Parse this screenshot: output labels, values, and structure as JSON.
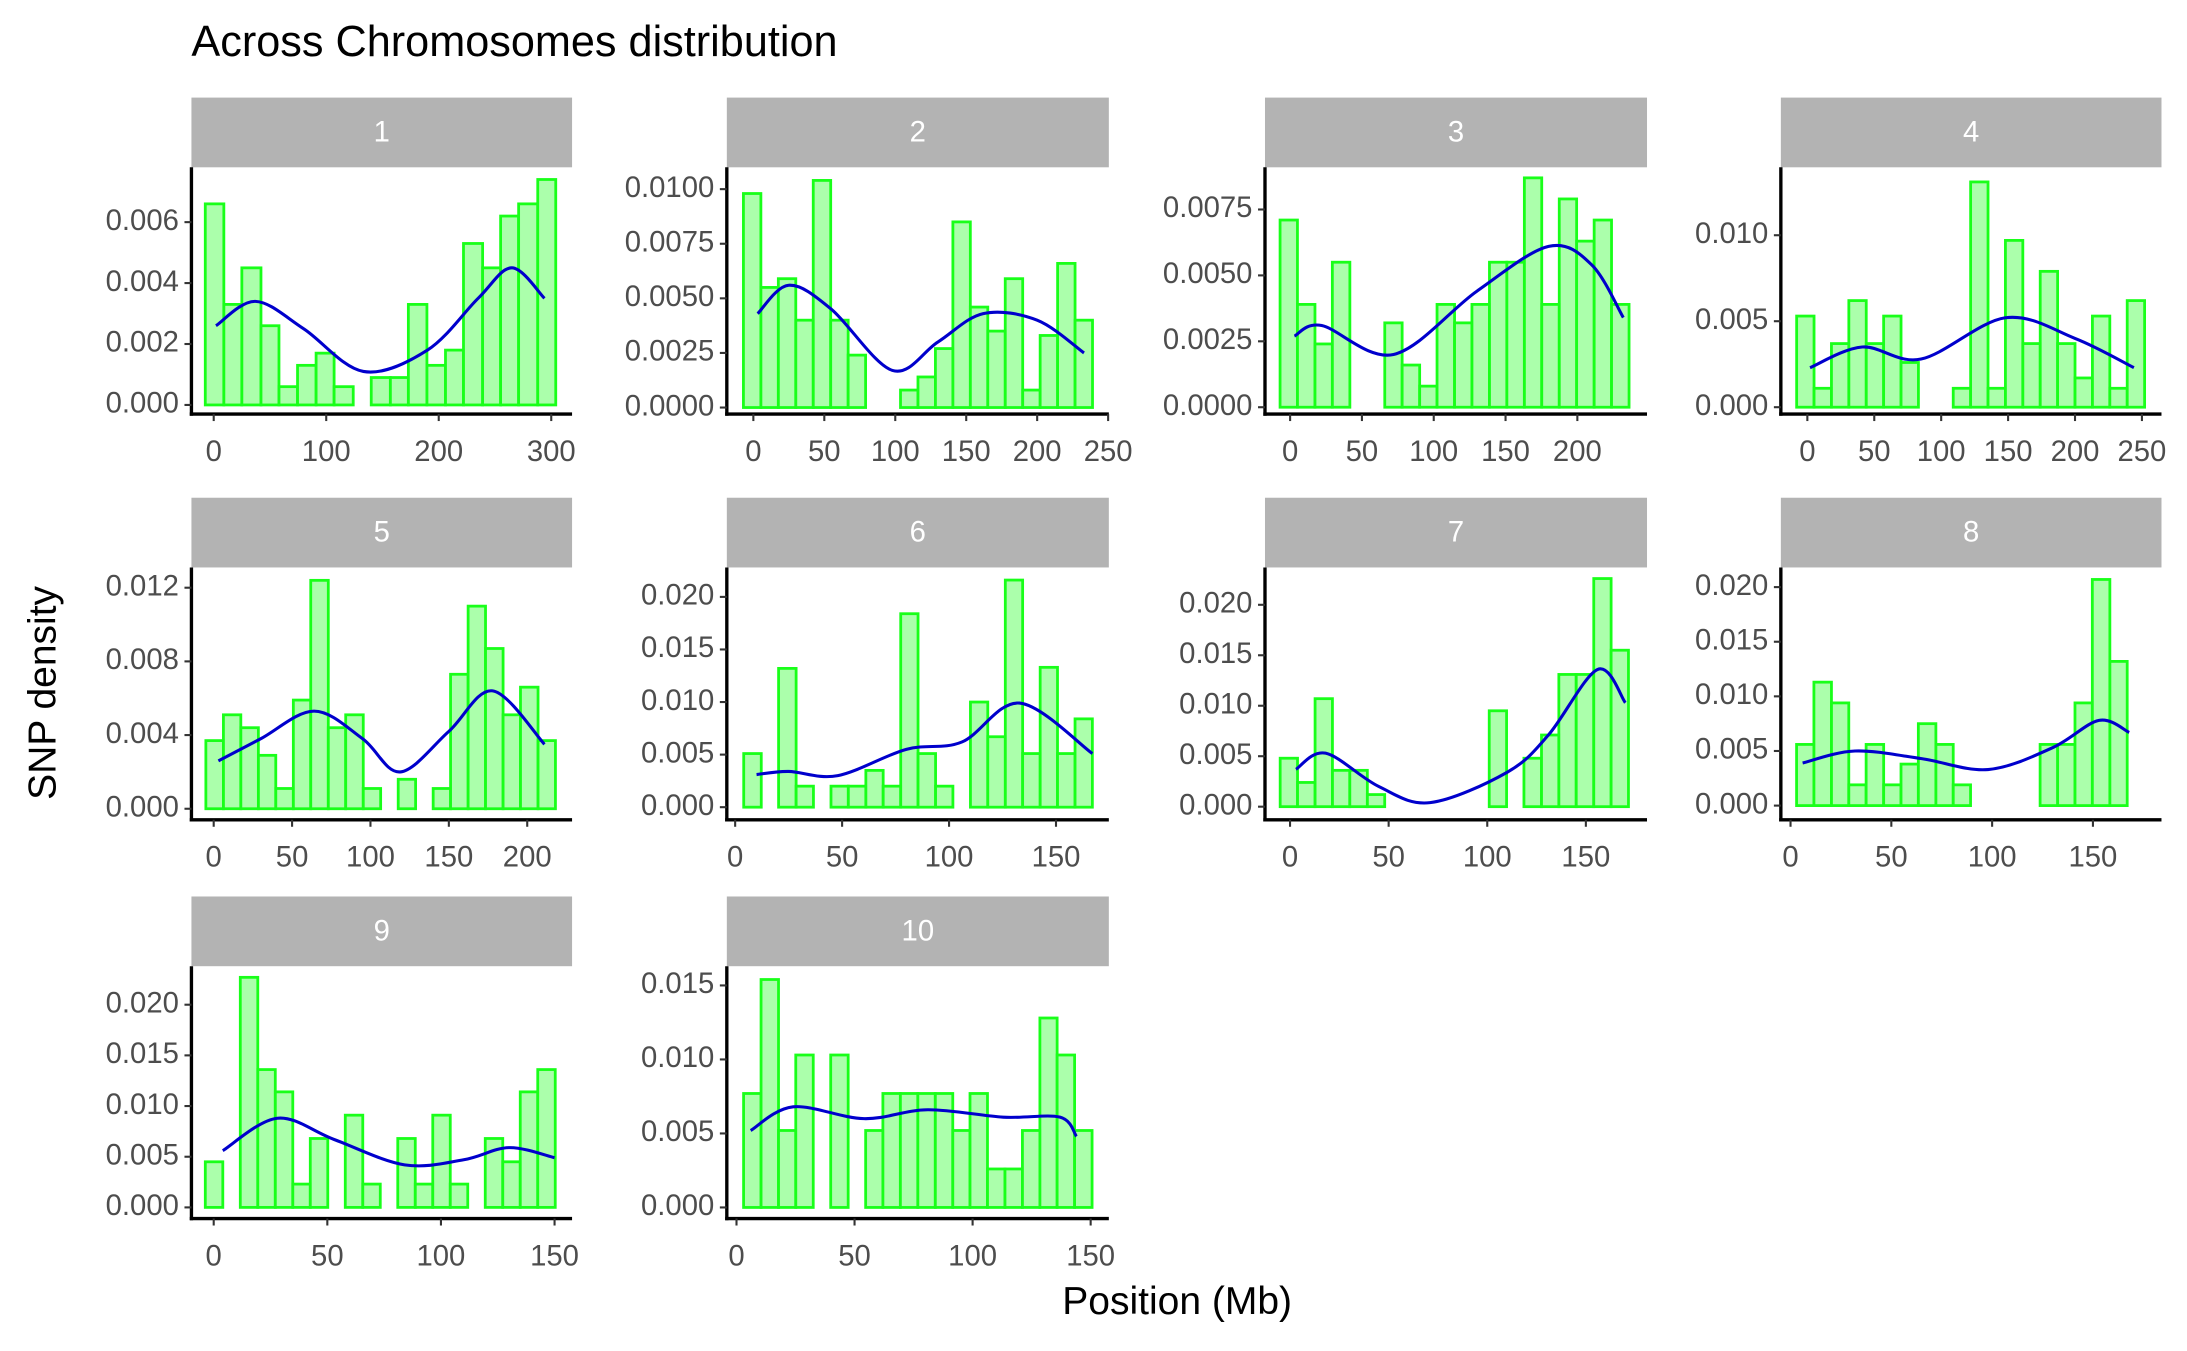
{
  "title": "Across Chromosomes distribution",
  "xlabel": "Position (Mb)",
  "ylabel": "SNP density",
  "chart_data": [
    {
      "type": "histogram",
      "title": "1",
      "color": "#19ff19",
      "fill": "#9cff9c",
      "bins": [
        -7.5,
        9,
        25,
        42,
        58,
        74.5,
        91,
        107,
        124,
        140,
        157,
        173,
        189.5,
        206,
        222,
        239,
        255,
        271,
        288,
        304
      ],
      "values": [
        0.0066,
        0.0033,
        0.0045,
        0.0026,
        0.0006,
        0.0013,
        0.0017,
        0.0006,
        0,
        0.0009,
        0.0009,
        0.0033,
        0.0013,
        0.0018,
        0.0053,
        0.0045,
        0.0062,
        0.0066,
        0.0074
      ],
      "density": {
        "color": "#0000cc",
        "x": [
          2,
          37,
          80,
          133,
          190,
          235,
          265,
          294
        ],
        "values": [
          0.0026,
          0.0034,
          0.0025,
          0.0011,
          0.0018,
          0.0035,
          0.0045,
          0.0035
        ]
      },
      "xlim": [
        -19.8,
        318.5
      ],
      "ylim": [
        -0.0003,
        0.0078
      ],
      "xticks": [
        0,
        100,
        200,
        300
      ],
      "yticks": [
        {
          "value": 0,
          "label": "0.000"
        },
        0.002,
        0.004,
        0.006
      ]
    },
    {
      "type": "histogram",
      "title": "2",
      "color": "#19ff19",
      "fill": "#9cff9c",
      "bins": [
        -7,
        5.3,
        17.6,
        29.9,
        42.2,
        54.5,
        66.8,
        79.1,
        91.4,
        103.7,
        116,
        128.3,
        140.6,
        152.9,
        165.2,
        177.5,
        189.8,
        202.1,
        214.4,
        226.7,
        239
      ],
      "values": [
        0.0098,
        0.0055,
        0.0059,
        0.004,
        0.0104,
        0.004,
        0.0024,
        0,
        0,
        0.0008,
        0.0014,
        0.0027,
        0.0085,
        0.0046,
        0.0035,
        0.0059,
        0.0008,
        0.0033,
        0.0066,
        0.004
      ],
      "density": {
        "color": "#0000cc",
        "x": [
          3,
          25,
          55,
          98,
          130,
          162,
          200,
          233
        ],
        "values": [
          0.0043,
          0.0056,
          0.0045,
          0.0017,
          0.003,
          0.0043,
          0.004,
          0.0025
        ]
      },
      "xlim": [
        -18.7,
        250.5
      ],
      "ylim": [
        -0.0003,
        0.011
      ],
      "xticks": [
        0,
        50,
        100,
        150,
        200,
        250
      ],
      "yticks": [
        {
          "value": 0,
          "label": "0.0000"
        },
        0.0025,
        {
          "value": 0.005,
          "label": "0.0050"
        },
        0.0075,
        {
          "value": 0.01,
          "label": "0.0100"
        }
      ]
    },
    {
      "type": "histogram",
      "title": "3",
      "color": "#19ff19",
      "fill": "#9cff9c",
      "bins": [
        -7,
        5.1,
        17.3,
        29.4,
        41.6,
        53.7,
        65.9,
        78,
        90.2,
        102.3,
        114.5,
        126.6,
        138.8,
        150.9,
        163.1,
        175.2,
        187.4,
        199.5,
        211.7,
        223.8,
        236
      ],
      "values": [
        0.0071,
        0.0039,
        0.0024,
        0.0055,
        0,
        0,
        0.0032,
        0.0016,
        0.0008,
        0.0039,
        0.0032,
        0.0039,
        0.0055,
        0.0055,
        0.0087,
        0.0039,
        0.0079,
        0.0063,
        0.0071,
        0.0039
      ],
      "density": {
        "color": "#0000cc",
        "x": [
          3,
          22,
          72,
          130,
          180,
          210,
          232
        ],
        "values": [
          0.0027,
          0.0031,
          0.002,
          0.0044,
          0.0061,
          0.0054,
          0.0034
        ]
      },
      "xlim": [
        -17.5,
        248.5
      ],
      "ylim": [
        -0.00026,
        0.0091
      ],
      "xticks": [
        0,
        50,
        100,
        150,
        200
      ],
      "yticks": [
        {
          "value": 0,
          "label": "0.0000"
        },
        0.0025,
        {
          "value": 0.005,
          "label": "0.0050"
        },
        0.0075
      ]
    },
    {
      "type": "histogram",
      "title": "4",
      "color": "#19ff19",
      "fill": "#9cff9c",
      "bins": [
        -8,
        5,
        18,
        31,
        44,
        57,
        70,
        83,
        96,
        109,
        122,
        135,
        148,
        161,
        174,
        187,
        200,
        213,
        226,
        239,
        252
      ],
      "values": [
        0.0053,
        0.0011,
        0.0037,
        0.0062,
        0.0037,
        0.0053,
        0.0026,
        0,
        0,
        0.0011,
        0.0131,
        0.0011,
        0.0097,
        0.0037,
        0.0079,
        0.0037,
        0.0017,
        0.0053,
        0.0011,
        0.0062
      ],
      "density": {
        "color": "#0000cc",
        "x": [
          2,
          41,
          85,
          148,
          200,
          244
        ],
        "values": [
          0.0023,
          0.0035,
          0.0028,
          0.0052,
          0.004,
          0.0023
        ]
      },
      "xlim": [
        -19.8,
        264.6
      ],
      "ylim": [
        -0.0004,
        0.01395
      ],
      "xticks": [
        0,
        50,
        100,
        150,
        200,
        250
      ],
      "yticks": [
        {
          "value": 0,
          "label": "0.000"
        },
        0.005,
        {
          "value": 0.01,
          "label": "0.010"
        }
      ]
    },
    {
      "type": "histogram",
      "title": "5",
      "color": "#19ff19",
      "fill": "#9cff9c",
      "bins": [
        -5,
        6.2,
        17.3,
        28.5,
        39.6,
        50.8,
        61.9,
        73.1,
        84.2,
        95.4,
        106.5,
        117.7,
        128.8,
        140,
        151.1,
        162.3,
        173.4,
        184.6,
        195.7,
        206.9,
        218
      ],
      "values": [
        0.0037,
        0.0051,
        0.0044,
        0.0029,
        0.0011,
        0.0059,
        0.0124,
        0.0044,
        0.0051,
        0.0011,
        0,
        0.0016,
        0,
        0.0011,
        0.0073,
        0.011,
        0.0087,
        0.0051,
        0.0066,
        0.0037
      ],
      "density": {
        "color": "#0000cc",
        "x": [
          3,
          30,
          64,
          95,
          119,
          150,
          178,
          211
        ],
        "values": [
          0.0026,
          0.0038,
          0.0053,
          0.0038,
          0.002,
          0.0042,
          0.0064,
          0.0035
        ]
      },
      "xlim": [
        -14.2,
        228.6
      ],
      "ylim": [
        -0.0006,
        0.0131
      ],
      "xticks": [
        0,
        50,
        100,
        150,
        200
      ],
      "yticks": [
        {
          "value": 0,
          "label": "0.000"
        },
        0.004,
        0.008,
        0.012
      ]
    },
    {
      "type": "histogram",
      "title": "6",
      "color": "#19ff19",
      "fill": "#9cff9c",
      "bins": [
        4,
        12.2,
        20.3,
        28.5,
        36.6,
        44.8,
        52.9,
        61.1,
        69.2,
        77.4,
        85.5,
        93.7,
        101.8,
        110,
        118.1,
        126.3,
        134.4,
        142.6,
        150.7,
        158.9,
        167
      ],
      "values": [
        0.0051,
        0,
        0.0132,
        0.002,
        0,
        0.002,
        0.002,
        0.0035,
        0.002,
        0.0184,
        0.0051,
        0.002,
        0,
        0.01,
        0.0067,
        0.0216,
        0.0051,
        0.0133,
        0.0051,
        0.0084
      ],
      "density": {
        "color": "#0000cc",
        "x": [
          10,
          25,
          48,
          80,
          106,
          133,
          167
        ],
        "values": [
          0.0031,
          0.0034,
          0.003,
          0.0055,
          0.0062,
          0.0099,
          0.0051
        ]
      },
      "xlim": [
        -3.9,
        174.7
      ],
      "ylim": [
        -0.0012,
        0.0228
      ],
      "xticks": [
        0,
        50,
        100,
        150
      ],
      "yticks": [
        {
          "value": 0,
          "label": "0.000"
        },
        0.005,
        {
          "value": 0.01,
          "label": "0.010"
        },
        0.015,
        {
          "value": 0.02,
          "label": "0.020"
        }
      ]
    },
    {
      "type": "histogram",
      "title": "7",
      "color": "#19ff19",
      "fill": "#9cff9c",
      "bins": [
        -5,
        3.8,
        12.7,
        21.5,
        30.3,
        39.2,
        48,
        56.8,
        65.6,
        74.5,
        83.3,
        92.1,
        101,
        109.8,
        118.6,
        127.5,
        136.3,
        145.1,
        154,
        162.8,
        171.6
      ],
      "values": [
        0.0048,
        0.0024,
        0.0107,
        0.0036,
        0.0036,
        0.0012,
        0,
        0,
        0,
        0,
        0,
        0,
        0.0095,
        0,
        0.0048,
        0.0071,
        0.0131,
        0.0131,
        0.0226,
        0.0155
      ],
      "density": {
        "color": "#0000cc",
        "x": [
          3,
          18,
          45,
          71,
          110,
          131,
          156,
          170
        ],
        "values": [
          0.0037,
          0.0053,
          0.002,
          0.0004,
          0.0034,
          0.0071,
          0.0136,
          0.0103
        ]
      },
      "xlim": [
        -12.7,
        181
      ],
      "ylim": [
        -0.0013,
        0.0237
      ],
      "xticks": [
        0,
        50,
        100,
        150
      ],
      "yticks": [
        {
          "value": 0,
          "label": "0.000"
        },
        0.005,
        {
          "value": 0.01,
          "label": "0.010"
        },
        0.015,
        {
          "value": 0.02,
          "label": "0.020"
        }
      ]
    },
    {
      "type": "histogram",
      "title": "8",
      "color": "#19ff19",
      "fill": "#9cff9c",
      "bins": [
        3,
        11.6,
        20.3,
        28.9,
        37.5,
        46.2,
        54.8,
        63.4,
        72.1,
        80.7,
        89.3,
        97.9,
        106.6,
        115.2,
        123.8,
        132.5,
        141.1,
        149.7,
        158.4,
        167
      ],
      "values": [
        0.0056,
        0.0113,
        0.0094,
        0.0019,
        0.0056,
        0.0019,
        0.0038,
        0.0075,
        0.0056,
        0.0019,
        0,
        0,
        0,
        0,
        0.0056,
        0.0056,
        0.0094,
        0.0207,
        0.0132
      ],
      "density": {
        "color": "#0000cc",
        "x": [
          6,
          32,
          65,
          98,
          130,
          153,
          168
        ],
        "values": [
          0.0039,
          0.005,
          0.0043,
          0.0033,
          0.0053,
          0.0078,
          0.0067
        ]
      },
      "xlim": [
        -4.8,
        184
      ],
      "ylim": [
        -0.0013,
        0.0218
      ],
      "xticks": [
        0,
        50,
        100,
        150
      ],
      "yticks": [
        {
          "value": 0,
          "label": "0.000"
        },
        0.005,
        {
          "value": 0.01,
          "label": "0.010"
        },
        0.015,
        {
          "value": 0.02,
          "label": "0.020"
        }
      ]
    },
    {
      "type": "histogram",
      "title": "9",
      "color": "#19ff19",
      "fill": "#9cff9c",
      "bins": [
        -3.7,
        4,
        11.7,
        19.4,
        27.1,
        34.8,
        42.5,
        50.2,
        57.9,
        65.6,
        73.3,
        81,
        88.7,
        96.4,
        104.1,
        111.8,
        119.5,
        127.2,
        134.9,
        142.6,
        150.3
      ],
      "values": [
        0.0045,
        0,
        0.0227,
        0.0136,
        0.0114,
        0.0023,
        0.0068,
        0,
        0.0091,
        0.0023,
        0,
        0.0068,
        0.0023,
        0.0091,
        0.0023,
        0,
        0.0068,
        0.0045,
        0.0114,
        0.0136
      ],
      "density": {
        "color": "#0000cc",
        "x": [
          4,
          28,
          53,
          84,
          110,
          130,
          150
        ],
        "values": [
          0.0056,
          0.0088,
          0.0067,
          0.0042,
          0.0047,
          0.0059,
          0.0049
        ]
      },
      "xlim": [
        -9.8,
        157.7
      ],
      "ylim": [
        -0.0011,
        0.0238
      ],
      "xticks": [
        0,
        50,
        100,
        150
      ],
      "yticks": [
        {
          "value": 0,
          "label": "0.000"
        },
        0.005,
        {
          "value": 0.01,
          "label": "0.010"
        },
        0.015,
        {
          "value": 0.02,
          "label": "0.020"
        }
      ]
    },
    {
      "type": "histogram",
      "title": "10",
      "color": "#19ff19",
      "fill": "#9cff9c",
      "bins": [
        3,
        10.4,
        17.8,
        25.1,
        32.5,
        39.9,
        47.3,
        54.7,
        62,
        69.4,
        76.8,
        84.2,
        91.6,
        98.9,
        106.3,
        113.7,
        121.1,
        128.5,
        135.8,
        143.2,
        150.6
      ],
      "values": [
        0.0077,
        0.0154,
        0.0052,
        0.0103,
        0,
        0.0103,
        0,
        0.0052,
        0.0077,
        0.0077,
        0.0077,
        0.0077,
        0.0052,
        0.0077,
        0.0026,
        0.0026,
        0.0052,
        0.0128,
        0.0103,
        0.0052
      ],
      "density": {
        "color": "#0000cc",
        "x": [
          6,
          24,
          54,
          81,
          113,
          137,
          144
        ],
        "values": [
          0.0052,
          0.0068,
          0.006,
          0.0066,
          0.0061,
          0.0061,
          0.0048
        ]
      },
      "xlim": [
        -4.1,
        157.7
      ],
      "ylim": [
        -0.00075,
        0.0163
      ],
      "xticks": [
        0,
        50,
        100,
        150
      ],
      "yticks": [
        {
          "value": 0,
          "label": "0.000"
        },
        0.005,
        {
          "value": 0.01,
          "label": "0.010"
        },
        0.015
      ]
    }
  ]
}
